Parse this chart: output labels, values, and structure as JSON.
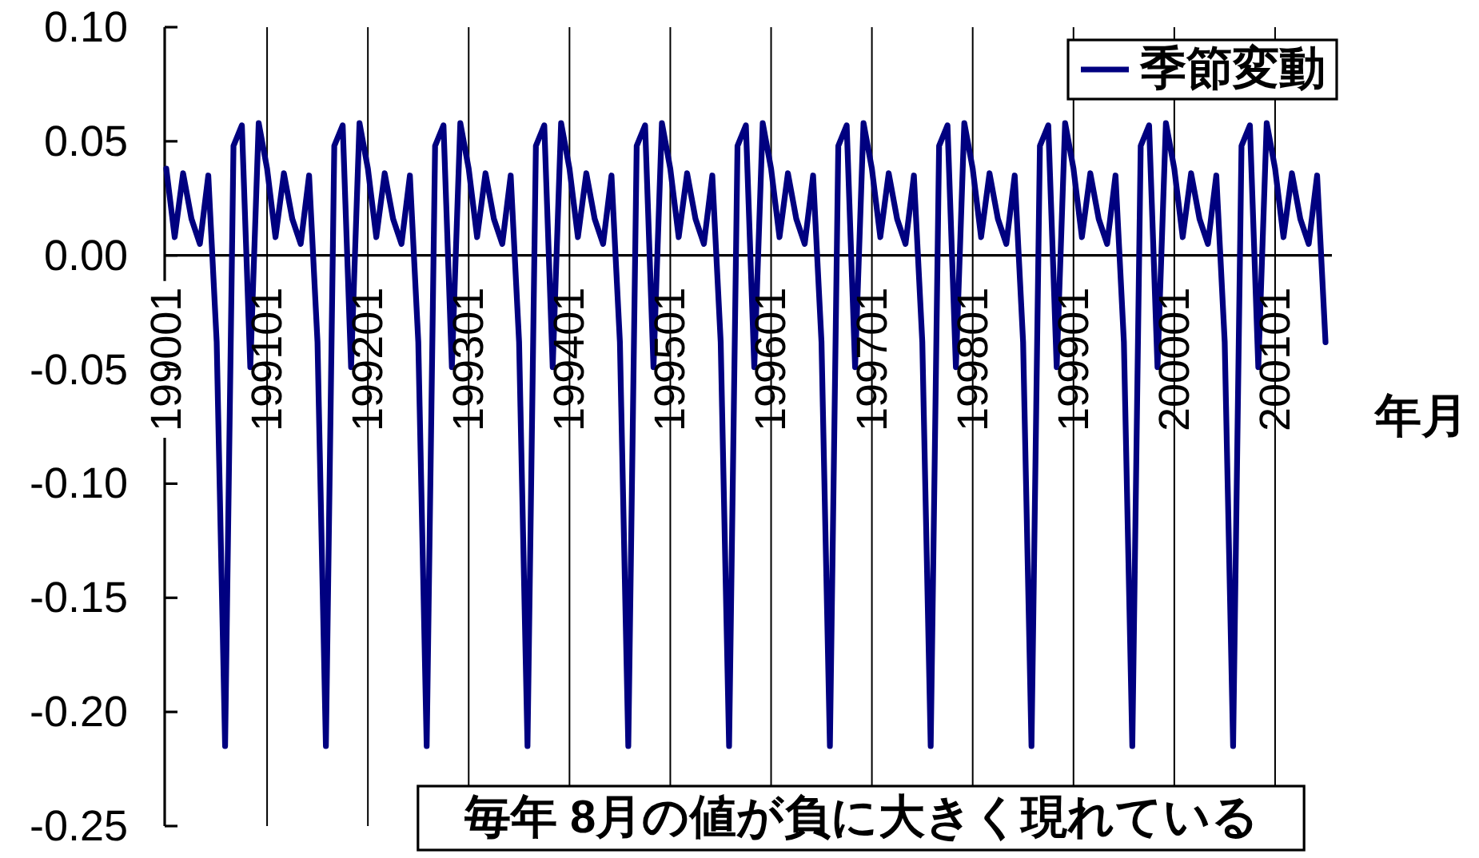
{
  "chart_data": {
    "type": "line",
    "xlabel": "年月",
    "categories": [
      "199001",
      null,
      null,
      null,
      null,
      null,
      null,
      null,
      null,
      null,
      null,
      null,
      "199101",
      null,
      null,
      null,
      null,
      null,
      null,
      null,
      null,
      null,
      null,
      null,
      "199201",
      null,
      null,
      null,
      null,
      null,
      null,
      null,
      null,
      null,
      null,
      null,
      "199301",
      null,
      null,
      null,
      null,
      null,
      null,
      null,
      null,
      null,
      null,
      null,
      "199401",
      null,
      null,
      null,
      null,
      null,
      null,
      null,
      null,
      null,
      null,
      null,
      "199501",
      null,
      null,
      null,
      null,
      null,
      null,
      null,
      null,
      null,
      null,
      null,
      "199601",
      null,
      null,
      null,
      null,
      null,
      null,
      null,
      null,
      null,
      null,
      null,
      "199701",
      null,
      null,
      null,
      null,
      null,
      null,
      null,
      null,
      null,
      null,
      null,
      "199801",
      null,
      null,
      null,
      null,
      null,
      null,
      null,
      null,
      null,
      null,
      null,
      "199901",
      null,
      null,
      null,
      null,
      null,
      null,
      null,
      null,
      null,
      null,
      null,
      "200001",
      null,
      null,
      null,
      null,
      null,
      null,
      null,
      null,
      null,
      null,
      null,
      "200101",
      null,
      null,
      null,
      null,
      null,
      null
    ],
    "series": [
      {
        "name": "季節変動",
        "color": "#000080",
        "values": [
          0.038,
          0.008,
          0.036,
          0.016,
          0.005,
          0.035,
          -0.038,
          -0.215,
          0.048,
          0.057,
          -0.049,
          0.058,
          0.038,
          0.008,
          0.036,
          0.016,
          0.005,
          0.035,
          -0.038,
          -0.215,
          0.048,
          0.057,
          -0.049,
          0.058,
          0.038,
          0.008,
          0.036,
          0.016,
          0.005,
          0.035,
          -0.038,
          -0.215,
          0.048,
          0.057,
          -0.049,
          0.058,
          0.038,
          0.008,
          0.036,
          0.016,
          0.005,
          0.035,
          -0.038,
          -0.215,
          0.048,
          0.057,
          -0.049,
          0.058,
          0.038,
          0.008,
          0.036,
          0.016,
          0.005,
          0.035,
          -0.038,
          -0.215,
          0.048,
          0.057,
          -0.049,
          0.058,
          0.038,
          0.008,
          0.036,
          0.016,
          0.005,
          0.035,
          -0.038,
          -0.215,
          0.048,
          0.057,
          -0.049,
          0.058,
          0.038,
          0.008,
          0.036,
          0.016,
          0.005,
          0.035,
          -0.038,
          -0.215,
          0.048,
          0.057,
          -0.049,
          0.058,
          0.038,
          0.008,
          0.036,
          0.016,
          0.005,
          0.035,
          -0.038,
          -0.215,
          0.048,
          0.057,
          -0.049,
          0.058,
          0.038,
          0.008,
          0.036,
          0.016,
          0.005,
          0.035,
          -0.038,
          -0.215,
          0.048,
          0.057,
          -0.049,
          0.058,
          0.038,
          0.008,
          0.036,
          0.016,
          0.005,
          0.035,
          -0.038,
          -0.215,
          0.048,
          0.057,
          -0.049,
          0.058,
          0.038,
          0.008,
          0.036,
          0.016,
          0.005,
          0.035,
          -0.038,
          -0.215,
          0.048,
          0.057,
          -0.049,
          0.058,
          0.038,
          0.008,
          0.036,
          0.016,
          0.005,
          0.035,
          -0.038
        ]
      }
    ],
    "ylim": [
      -0.25,
      0.1
    ],
    "yticks": [
      {
        "value": 0.1,
        "label": "0.10"
      },
      {
        "value": 0.05,
        "label": "0.05"
      },
      {
        "value": 0,
        "label": "0.00"
      },
      {
        "value": -0.05,
        "label": "-0.05"
      },
      {
        "value": -0.1,
        "label": "-0.10"
      },
      {
        "value": -0.15,
        "label": "-0.15"
      },
      {
        "value": -0.2,
        "label": "-0.20"
      },
      {
        "value": -0.25,
        "label": "-0.25"
      }
    ],
    "grid": "x",
    "legend": "top right",
    "line_style": "solid",
    "annotations": [
      "毎年 8月の値が負に大きく現れている"
    ]
  }
}
